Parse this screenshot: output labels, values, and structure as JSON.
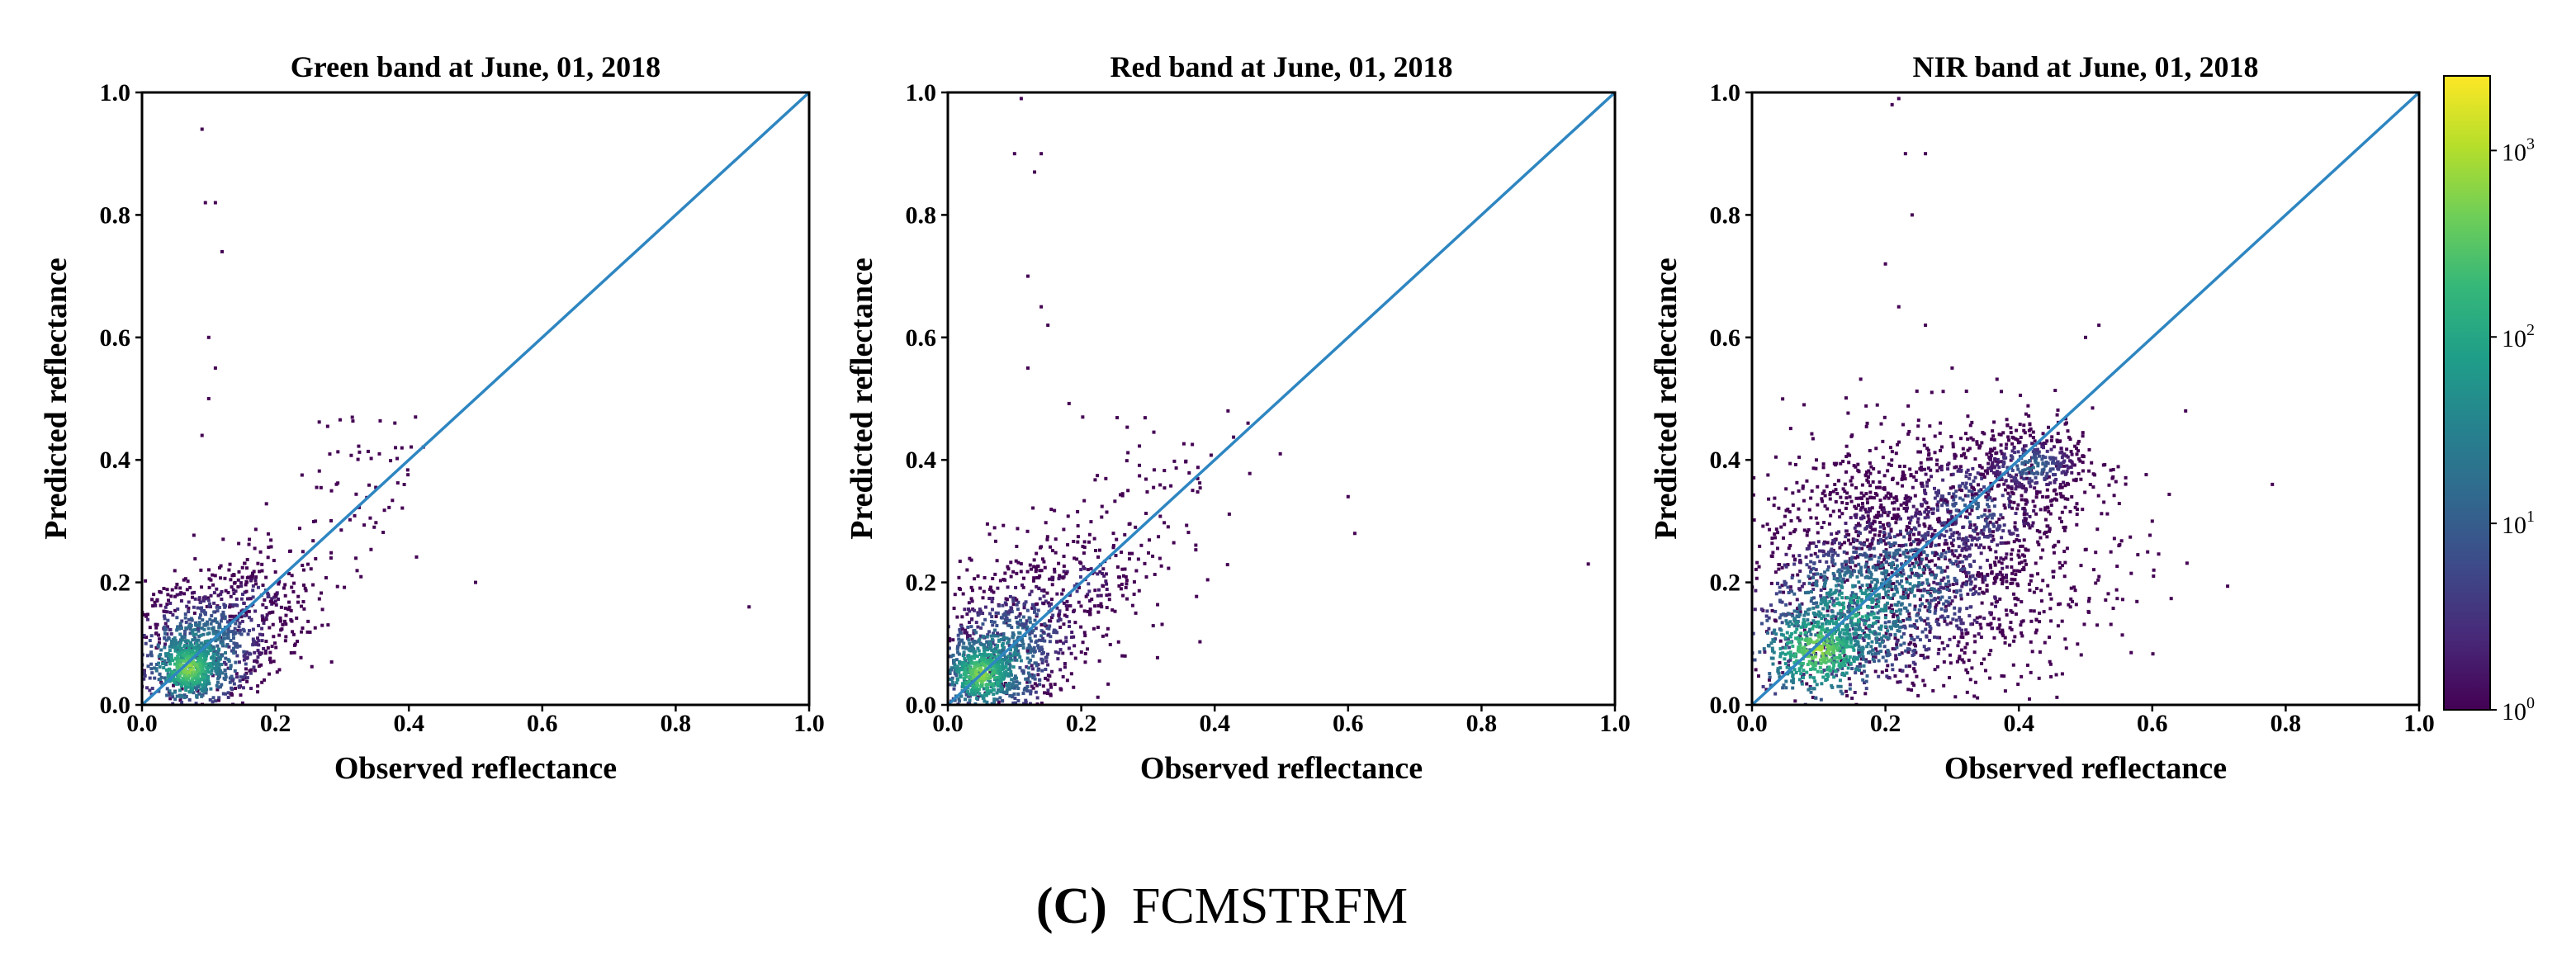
{
  "chart_data": [
    {
      "type": "scatter",
      "title": "Green band at June, 01, 2018",
      "xlabel": "Observed reflectance",
      "ylabel": "Predicted reflectance",
      "xlim": [
        0.0,
        1.0
      ],
      "ylim": [
        0.0,
        1.0
      ],
      "xticks": [
        "0.0",
        "0.2",
        "0.4",
        "0.6",
        "0.8",
        "1.0"
      ],
      "yticks": [
        "0.0",
        "0.2",
        "0.4",
        "0.6",
        "0.8",
        "1.0"
      ],
      "reference_line": "1:1",
      "grid": false,
      "density_clusters": [
        {
          "x": 0.07,
          "y": 0.06,
          "sx": 0.025,
          "sy": 0.025,
          "n": 360,
          "level": 3.0
        },
        {
          "x": 0.08,
          "y": 0.08,
          "sx": 0.045,
          "sy": 0.045,
          "n": 450,
          "level": 2.2
        },
        {
          "x": 0.11,
          "y": 0.12,
          "sx": 0.06,
          "sy": 0.05,
          "n": 380,
          "level": 1.4
        },
        {
          "x": 0.17,
          "y": 0.18,
          "sx": 0.06,
          "sy": 0.04,
          "n": 180,
          "level": 0.7
        },
        {
          "x": 0.33,
          "y": 0.36,
          "sx": 0.06,
          "sy": 0.06,
          "n": 60,
          "level": 0.1
        }
      ],
      "outliers": [
        [
          0.09,
          0.94
        ],
        [
          0.095,
          0.82
        ],
        [
          0.11,
          0.82
        ],
        [
          0.12,
          0.74
        ],
        [
          0.1,
          0.6
        ],
        [
          0.11,
          0.55
        ],
        [
          0.1,
          0.5
        ],
        [
          0.09,
          0.44
        ],
        [
          0.91,
          0.16
        ],
        [
          0.5,
          0.2
        ],
        [
          0.41,
          0.47
        ],
        [
          0.38,
          0.42
        ],
        [
          0.26,
          0.3
        ],
        [
          0.2,
          0.18
        ]
      ]
    },
    {
      "type": "scatter",
      "title": "Red band at June, 01, 2018",
      "xlabel": "Observed reflectance",
      "ylabel": "Predicted reflectance",
      "xlim": [
        0.0,
        1.0
      ],
      "ylim": [
        0.0,
        1.0
      ],
      "xticks": [
        "0.0",
        "0.2",
        "0.4",
        "0.6",
        "0.8",
        "1.0"
      ],
      "yticks": [
        "0.0",
        "0.2",
        "0.4",
        "0.6",
        "0.8",
        "1.0"
      ],
      "reference_line": "1:1",
      "grid": false,
      "density_clusters": [
        {
          "x": 0.05,
          "y": 0.05,
          "sx": 0.025,
          "sy": 0.025,
          "n": 360,
          "level": 3.0
        },
        {
          "x": 0.07,
          "y": 0.07,
          "sx": 0.045,
          "sy": 0.045,
          "n": 450,
          "level": 2.2
        },
        {
          "x": 0.11,
          "y": 0.12,
          "sx": 0.06,
          "sy": 0.055,
          "n": 380,
          "level": 1.4
        },
        {
          "x": 0.2,
          "y": 0.2,
          "sx": 0.07,
          "sy": 0.05,
          "n": 200,
          "level": 0.7
        },
        {
          "x": 0.33,
          "y": 0.34,
          "sx": 0.07,
          "sy": 0.06,
          "n": 70,
          "level": 0.1
        }
      ],
      "outliers": [
        [
          0.11,
          0.99
        ],
        [
          0.1,
          0.9
        ],
        [
          0.14,
          0.9
        ],
        [
          0.13,
          0.87
        ],
        [
          0.12,
          0.7
        ],
        [
          0.14,
          0.65
        ],
        [
          0.15,
          0.62
        ],
        [
          0.12,
          0.55
        ],
        [
          0.96,
          0.23
        ],
        [
          0.61,
          0.28
        ],
        [
          0.6,
          0.34
        ],
        [
          0.42,
          0.48
        ],
        [
          0.45,
          0.46
        ],
        [
          0.27,
          0.35
        ]
      ]
    },
    {
      "type": "scatter",
      "title": "NIR band at June, 01, 2018",
      "xlabel": "Observed reflectance",
      "ylabel": "Predicted reflectance",
      "xlim": [
        0.0,
        1.0
      ],
      "ylim": [
        0.0,
        1.0
      ],
      "xticks": [
        "0.0",
        "0.2",
        "0.4",
        "0.6",
        "0.8",
        "1.0"
      ],
      "yticks": [
        "0.0",
        "0.2",
        "0.4",
        "0.6",
        "0.8",
        "1.0"
      ],
      "reference_line": "1:1",
      "grid": false,
      "density_clusters": [
        {
          "x": 0.1,
          "y": 0.09,
          "sx": 0.04,
          "sy": 0.035,
          "n": 420,
          "level": 3.0
        },
        {
          "x": 0.15,
          "y": 0.15,
          "sx": 0.07,
          "sy": 0.06,
          "n": 650,
          "level": 2.2
        },
        {
          "x": 0.22,
          "y": 0.2,
          "sx": 0.1,
          "sy": 0.08,
          "n": 700,
          "level": 1.6
        },
        {
          "x": 0.33,
          "y": 0.32,
          "sx": 0.09,
          "sy": 0.08,
          "n": 600,
          "level": 1.1
        },
        {
          "x": 0.42,
          "y": 0.39,
          "sx": 0.05,
          "sy": 0.03,
          "n": 360,
          "level": 1.3
        },
        {
          "x": 0.3,
          "y": 0.2,
          "sx": 0.12,
          "sy": 0.1,
          "n": 500,
          "level": 0.4
        },
        {
          "x": 0.16,
          "y": 0.3,
          "sx": 0.08,
          "sy": 0.08,
          "n": 300,
          "level": 0.3
        }
      ],
      "outliers": [
        [
          0.21,
          0.98
        ],
        [
          0.22,
          0.99
        ],
        [
          0.23,
          0.9
        ],
        [
          0.26,
          0.9
        ],
        [
          0.24,
          0.8
        ],
        [
          0.2,
          0.72
        ],
        [
          0.22,
          0.65
        ],
        [
          0.26,
          0.62
        ],
        [
          0.3,
          0.55
        ],
        [
          0.78,
          0.36
        ],
        [
          0.65,
          0.48
        ],
        [
          0.6,
          0.3
        ],
        [
          0.55,
          0.26
        ],
        [
          0.52,
          0.62
        ],
        [
          0.5,
          0.6
        ]
      ]
    }
  ],
  "colorbar": {
    "colormap": "viridis",
    "scale": "log",
    "ticks": [
      {
        "base": "10",
        "exp": "0",
        "level": 0
      },
      {
        "base": "10",
        "exp": "1",
        "level": 1
      },
      {
        "base": "10",
        "exp": "2",
        "level": 2
      },
      {
        "base": "10",
        "exp": "3",
        "level": 3
      }
    ],
    "min_level": 0,
    "max_level": 3.4,
    "colors": [
      "#440154",
      "#482878",
      "#3e4989",
      "#31688e",
      "#26828e",
      "#1f9e89",
      "#35b779",
      "#6ece58",
      "#b5de2b",
      "#fde725"
    ]
  },
  "caption": {
    "label": "(C)",
    "text": "FCMSTRFM"
  },
  "colors": {
    "reference_line": "#2e86c1",
    "axes": "#000000"
  }
}
